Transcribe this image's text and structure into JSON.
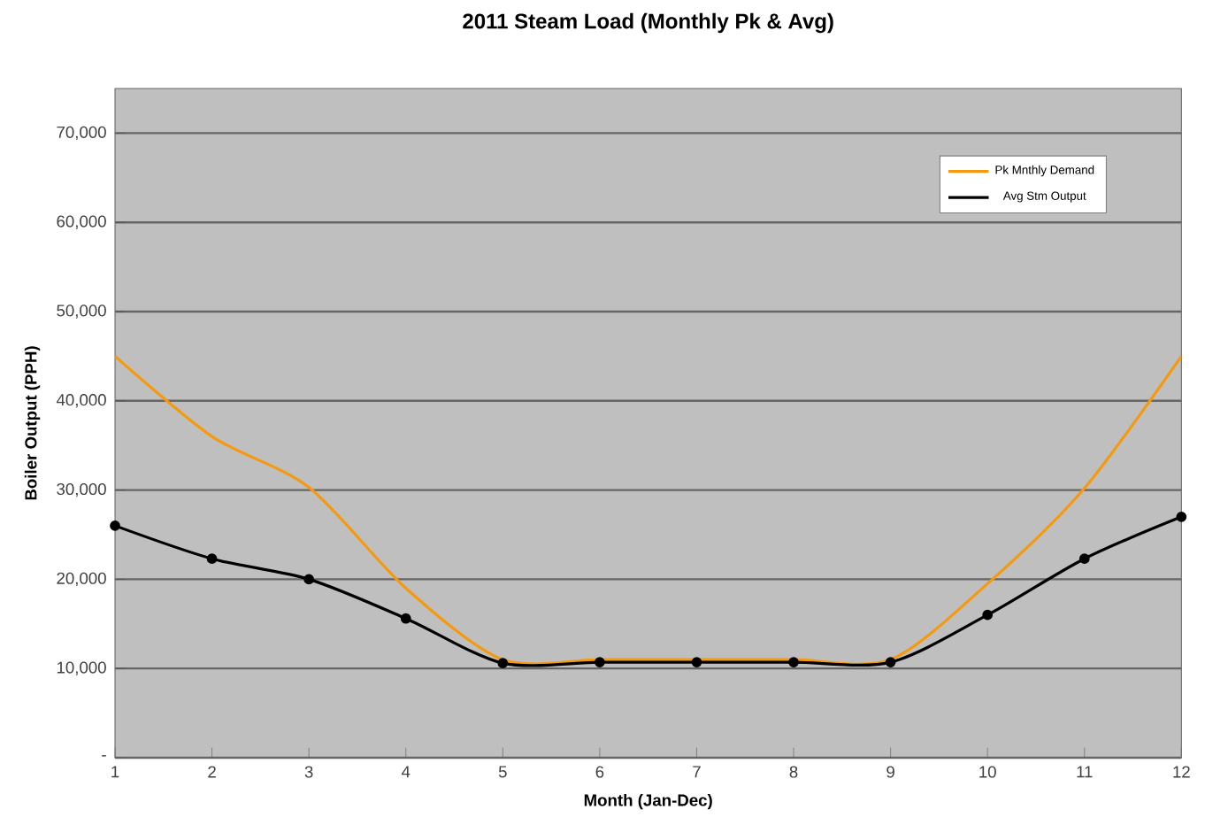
{
  "chart_data": {
    "type": "line",
    "title": "2011 Steam Load (Monthly Pk & Avg)",
    "xlabel": "Month  (Jan-Dec)",
    "ylabel": "Boiler Output  (PPH)",
    "x": [
      1,
      2,
      3,
      4,
      5,
      6,
      7,
      8,
      9,
      10,
      11,
      12
    ],
    "xlim": [
      1,
      12
    ],
    "xticks": [
      1,
      2,
      3,
      4,
      5,
      6,
      7,
      8,
      9,
      10,
      11,
      12
    ],
    "ylim": [
      0,
      75000
    ],
    "yticks": [
      {
        "value": 0,
        "label": "-"
      },
      {
        "value": 10000,
        "label": "10,000"
      },
      {
        "value": 20000,
        "label": "20,000"
      },
      {
        "value": 30000,
        "label": "30,000"
      },
      {
        "value": 40000,
        "label": "40,000"
      },
      {
        "value": 50000,
        "label": "50,000"
      },
      {
        "value": 60000,
        "label": "60,000"
      },
      {
        "value": 70000,
        "label": "70,000"
      }
    ],
    "grid": "y",
    "legend": "top right",
    "line_style": "solid",
    "series": [
      {
        "name": "Pk Mnthly Demand",
        "color": "#f59a0e",
        "marker": "none",
        "values": [
          45000,
          36000,
          30300,
          19000,
          11000,
          11000,
          11000,
          11000,
          11000,
          19500,
          30200,
          45000
        ]
      },
      {
        "name": "Avg Stm Output",
        "color": "#000000",
        "marker": "circle",
        "values": [
          26000,
          22300,
          20000,
          15600,
          10600,
          10700,
          10700,
          10700,
          10700,
          16000,
          22300,
          27000
        ]
      }
    ]
  }
}
